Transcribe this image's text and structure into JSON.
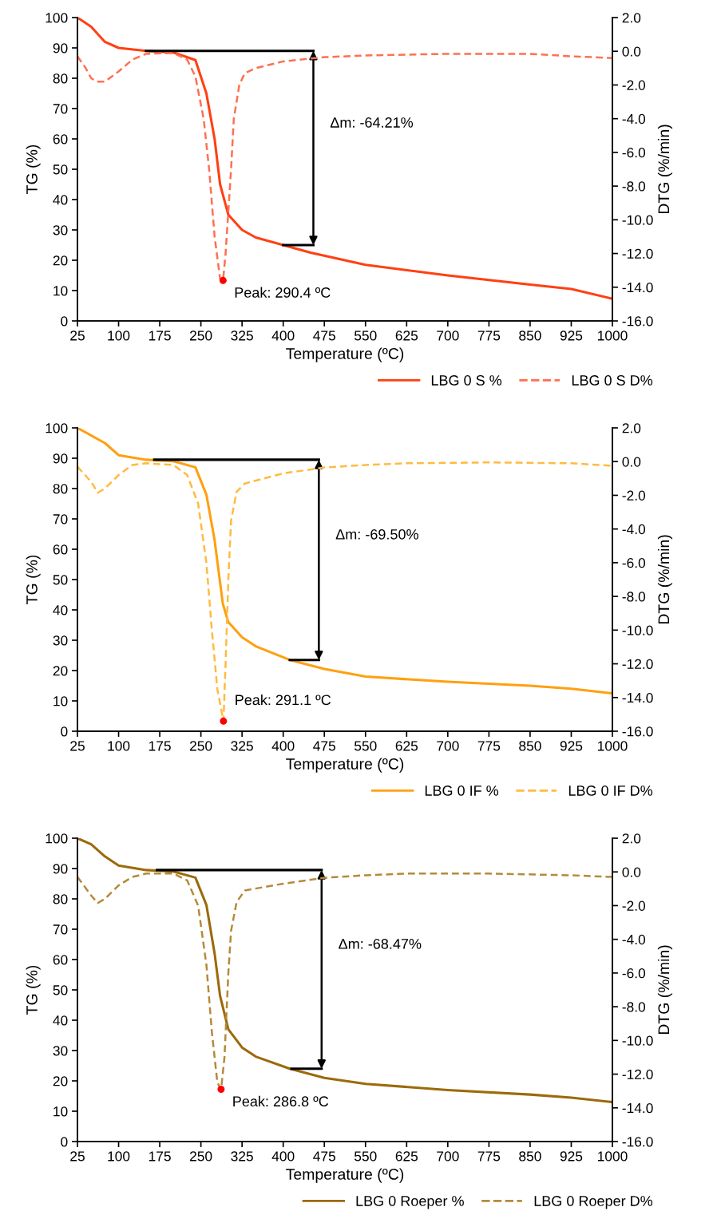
{
  "chart_data": [
    {
      "type": "line",
      "xlabel": "Temperature (ºC)",
      "ylabel": "TG (%)",
      "y2label": "DTG (%/min)",
      "xlim": [
        25,
        1000
      ],
      "xticks": [
        25,
        100,
        175,
        250,
        325,
        400,
        475,
        550,
        625,
        700,
        775,
        850,
        925,
        1000
      ],
      "ylim": [
        0,
        100
      ],
      "yticks": [
        0,
        10,
        20,
        30,
        40,
        50,
        60,
        70,
        80,
        90,
        100
      ],
      "y2lim": [
        -16,
        2
      ],
      "y2ticks": [
        {
          "value": 2,
          "label": "2.0"
        },
        {
          "value": 0,
          "label": "0.0"
        },
        {
          "value": -2,
          "label": "-2.0"
        },
        {
          "value": -4,
          "label": "-4.0"
        },
        {
          "value": -6,
          "label": "-6.0"
        },
        {
          "value": -8,
          "label": "-8.0"
        },
        {
          "value": -10,
          "label": "-10.0"
        },
        {
          "value": -12,
          "label": "-12.0"
        },
        {
          "value": -14,
          "label": "-14.0"
        },
        {
          "value": -16,
          "label": "-16.0"
        }
      ],
      "legend": "bottom right",
      "grid": false,
      "marker": "none",
      "series": [
        {
          "name": "LBG 0 S %",
          "color": "#ff4013",
          "line_style": "solid",
          "x": [
            25,
            50,
            75,
            100,
            150,
            200,
            240,
            260,
            275,
            285,
            300,
            325,
            350,
            400,
            450,
            550,
            700,
            850,
            925,
            1000
          ],
          "values": [
            100,
            97,
            92,
            90,
            89,
            88.5,
            86,
            75,
            60,
            45,
            35,
            30,
            27.5,
            25,
            22.5,
            18.5,
            15,
            12,
            10.5,
            7.3
          ]
        },
        {
          "name": "LBG 0 S D%",
          "color": "#ff7050",
          "line_style": "dashed",
          "axis": "y2",
          "x": [
            25,
            40,
            50,
            60,
            75,
            100,
            125,
            150,
            200,
            225,
            240,
            255,
            265,
            275,
            285,
            290.4,
            295,
            305,
            310,
            320,
            330,
            350,
            400,
            475,
            550,
            700,
            850,
            925,
            1000
          ],
          "values": [
            -0.3,
            -1.0,
            -1.6,
            -1.8,
            -1.8,
            -1.2,
            -0.5,
            -0.15,
            -0.1,
            -0.5,
            -1.5,
            -4,
            -7,
            -11,
            -13.5,
            -13.6,
            -12,
            -7,
            -4,
            -2,
            -1.3,
            -1.0,
            -0.6,
            -0.35,
            -0.25,
            -0.15,
            -0.15,
            -0.3,
            -0.4
          ]
        },
        {
          "type": "scatter",
          "color": "#ff0000",
          "axis": "y2",
          "x": [
            290.4
          ],
          "values": [
            -13.6
          ]
        },
        {
          "type": "line",
          "color": "#000000",
          "line_style": "solid",
          "x": [
            150,
            455
          ],
          "values": [
            89,
            89
          ]
        },
        {
          "type": "line",
          "color": "#000000",
          "line_style": "solid",
          "x": [
            400,
            455
          ],
          "values": [
            25,
            25
          ]
        }
      ],
      "annotations": [
        "Δm: -64.21%",
        "Peak: 290.4 ºC"
      ]
    },
    {
      "type": "line",
      "xlabel": "Temperature (ºC)",
      "ylabel": "TG (%)",
      "y2label": "DTG (%/min)",
      "xlim": [
        25,
        1000
      ],
      "xticks": [
        25,
        100,
        175,
        250,
        325,
        400,
        475,
        550,
        625,
        700,
        775,
        850,
        925,
        1000
      ],
      "ylim": [
        0,
        100
      ],
      "yticks": [
        0,
        10,
        20,
        30,
        40,
        50,
        60,
        70,
        80,
        90,
        100
      ],
      "y2lim": [
        -16,
        2
      ],
      "y2ticks": [
        {
          "value": 2,
          "label": "2.0"
        },
        {
          "value": 0,
          "label": "0.0"
        },
        {
          "value": -2,
          "label": "-2.0"
        },
        {
          "value": -4,
          "label": "-4.0"
        },
        {
          "value": -6,
          "label": "-6.0"
        },
        {
          "value": -8,
          "label": "-8.0"
        },
        {
          "value": -10,
          "label": "-10.0"
        },
        {
          "value": -12,
          "label": "-12.0"
        },
        {
          "value": -14,
          "label": "-14.0"
        },
        {
          "value": -16,
          "label": "-16.0"
        }
      ],
      "legend": "bottom right",
      "grid": false,
      "marker": "none",
      "series": [
        {
          "name": "LBG 0 IF %",
          "color": "#ffa010",
          "line_style": "solid",
          "x": [
            25,
            75,
            100,
            150,
            200,
            240,
            260,
            275,
            290,
            300,
            325,
            350,
            412,
            475,
            550,
            700,
            850,
            925,
            1000
          ],
          "values": [
            100,
            95,
            91,
            89.5,
            89,
            87,
            78,
            63,
            42,
            36,
            31,
            28,
            23.5,
            20.5,
            18,
            16.3,
            15,
            14,
            12.5
          ]
        },
        {
          "name": "LBG 0 IF D%",
          "color": "#ffbb40",
          "line_style": "dashed",
          "axis": "y2",
          "x": [
            25,
            50,
            62,
            75,
            100,
            125,
            150,
            200,
            225,
            245,
            260,
            270,
            280,
            291.1,
            295,
            300,
            305,
            315,
            330,
            400,
            475,
            550,
            625,
            775,
            925,
            1000
          ],
          "values": [
            -0.3,
            -1.2,
            -1.85,
            -1.6,
            -0.8,
            -0.2,
            -0.1,
            -0.2,
            -0.8,
            -2.5,
            -6,
            -10,
            -13.5,
            -15.4,
            -12,
            -7,
            -3.5,
            -1.8,
            -1.3,
            -0.7,
            -0.35,
            -0.2,
            -0.1,
            -0.05,
            -0.1,
            -0.25
          ]
        },
        {
          "type": "scatter",
          "color": "#ff0000",
          "axis": "y2",
          "x": [
            291.1
          ],
          "values": [
            -15.4
          ]
        },
        {
          "type": "line",
          "color": "#000000",
          "line_style": "solid",
          "x": [
            165,
            465
          ],
          "values": [
            89.5,
            89.5
          ]
        },
        {
          "type": "line",
          "color": "#000000",
          "line_style": "solid",
          "x": [
            412,
            465
          ],
          "values": [
            23.5,
            23.5
          ]
        }
      ],
      "annotations": [
        "Δm: -69.50%",
        "Peak: 291.1 ºC"
      ]
    },
    {
      "type": "line",
      "xlabel": "Temperature (ºC)",
      "ylabel": "TG (%)",
      "y2label": "DTG (%/min)",
      "xlim": [
        25,
        1000
      ],
      "xticks": [
        25,
        100,
        175,
        250,
        325,
        400,
        475,
        550,
        625,
        700,
        775,
        850,
        925,
        1000
      ],
      "ylim": [
        0,
        100
      ],
      "yticks": [
        0,
        10,
        20,
        30,
        40,
        50,
        60,
        70,
        80,
        90,
        100
      ],
      "y2lim": [
        -16,
        2
      ],
      "y2ticks": [
        {
          "value": 2,
          "label": "2.0"
        },
        {
          "value": 0,
          "label": "0.0"
        },
        {
          "value": -2,
          "label": "-2.0"
        },
        {
          "value": -4,
          "label": "-4.0"
        },
        {
          "value": -6,
          "label": "-6.0"
        },
        {
          "value": -8,
          "label": "-8.0"
        },
        {
          "value": -10,
          "label": "-10.0"
        },
        {
          "value": -12,
          "label": "-12.0"
        },
        {
          "value": -14,
          "label": "-14.0"
        },
        {
          "value": -16,
          "label": "-16.0"
        }
      ],
      "legend": "bottom right",
      "grid": false,
      "marker": "none",
      "series": [
        {
          "name": "LBG 0 Roeper %",
          "color": "#9c6a0a",
          "line_style": "solid",
          "x": [
            25,
            50,
            75,
            100,
            150,
            200,
            240,
            260,
            275,
            285,
            300,
            325,
            350,
            412,
            475,
            550,
            700,
            850,
            925,
            1000
          ],
          "values": [
            100,
            98,
            94,
            91,
            89.5,
            89,
            87,
            78,
            62,
            48,
            37,
            31,
            28,
            24,
            21,
            19,
            17,
            15.5,
            14.5,
            13
          ]
        },
        {
          "name": "LBG 0 Roeper D%",
          "color": "#b58a3a",
          "line_style": "dashed",
          "axis": "y2",
          "x": [
            25,
            50,
            62,
            75,
            100,
            125,
            150,
            200,
            225,
            245,
            260,
            270,
            280,
            286.8,
            293,
            300,
            305,
            315,
            330,
            400,
            475,
            550,
            625,
            775,
            925,
            1000
          ],
          "values": [
            -0.3,
            -1.4,
            -1.85,
            -1.6,
            -0.8,
            -0.3,
            -0.1,
            -0.1,
            -0.5,
            -2,
            -5.5,
            -9.5,
            -12.5,
            -12.9,
            -11,
            -6,
            -3.5,
            -1.8,
            -1.1,
            -0.7,
            -0.35,
            -0.2,
            -0.1,
            -0.1,
            -0.2,
            -0.3
          ]
        },
        {
          "type": "scatter",
          "color": "#ff0000",
          "axis": "y2",
          "x": [
            286.8
          ],
          "values": [
            -12.9
          ]
        },
        {
          "type": "line",
          "color": "#000000",
          "line_style": "solid",
          "x": [
            170,
            470
          ],
          "values": [
            89.5,
            89.5
          ]
        },
        {
          "type": "line",
          "color": "#000000",
          "line_style": "solid",
          "x": [
            415,
            470
          ],
          "values": [
            24,
            24
          ]
        }
      ],
      "annotations": [
        "Δm: -68.47%",
        "Peak: 286.8 ºC"
      ]
    }
  ]
}
